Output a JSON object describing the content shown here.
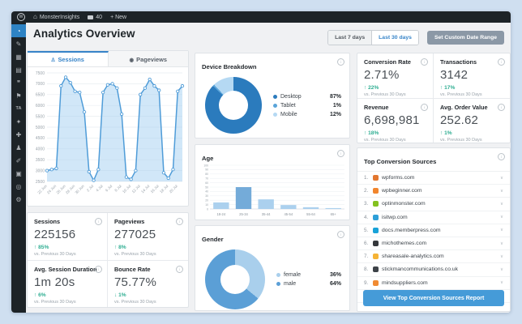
{
  "admin_bar": {
    "site": "MonsterInsights",
    "comments": "40",
    "new_label": "+ New"
  },
  "sidebar": {
    "items": [
      {
        "name": "dashboard",
        "glyph": "◔",
        "active": true
      },
      {
        "name": "posts",
        "glyph": "✎"
      },
      {
        "name": "media",
        "glyph": "▦"
      },
      {
        "name": "pages",
        "glyph": "▤"
      },
      {
        "name": "comments",
        "glyph": "❞"
      },
      {
        "name": "plugin-flag",
        "glyph": "⚑"
      },
      {
        "name": "plugin-ta",
        "glyph": "TA",
        "text": true
      },
      {
        "name": "appearance",
        "glyph": "✦"
      },
      {
        "name": "plugins",
        "glyph": "✚"
      },
      {
        "name": "users",
        "glyph": "♟"
      },
      {
        "name": "tools",
        "glyph": "✐"
      },
      {
        "name": "settings",
        "glyph": "▣"
      },
      {
        "name": "monsterinsights",
        "glyph": "◎"
      },
      {
        "name": "gear",
        "glyph": "⚙"
      }
    ]
  },
  "header": {
    "title": "Analytics Overview",
    "range_buttons": [
      {
        "label": "Last 7 days",
        "active": false
      },
      {
        "label": "Last 30 days",
        "active": true
      }
    ],
    "custom_range_label": "Set Custom Date Range"
  },
  "tabs": [
    {
      "label": "Sessions",
      "active": true
    },
    {
      "label": "Pageviews",
      "active": false
    }
  ],
  "stats_left": [
    {
      "label": "Sessions",
      "value": "225156",
      "direction": "up",
      "change": "85%",
      "compare": "vs. Previous 30 Days"
    },
    {
      "label": "Pageviews",
      "value": "277025",
      "direction": "up",
      "change": "8%",
      "compare": "vs. Previous 30 Days"
    },
    {
      "label": "Avg. Session Duration",
      "value": "1m 20s",
      "direction": "up",
      "change": "6%",
      "compare": "vs. Previous 30 Days"
    },
    {
      "label": "Bounce Rate",
      "value": "75.77%",
      "direction": "down",
      "change": "1%",
      "compare": "vs. Previous 30 Days"
    }
  ],
  "stats_right": [
    {
      "label": "Conversion Rate",
      "value": "2.71%",
      "direction": "up",
      "change": "22%",
      "compare": "vs. Previous 30 Days"
    },
    {
      "label": "Transactions",
      "value": "3142",
      "direction": "up",
      "change": "17%",
      "compare": "vs. Previous 30 Days"
    },
    {
      "label": "Revenue",
      "value": "6,698,981",
      "direction": "up",
      "change": "18%",
      "compare": "vs. Previous 30 Days"
    },
    {
      "label": "Avg. Order Value",
      "value": "252.62",
      "direction": "up",
      "change": "1%",
      "compare": "vs. Previous 30 Days"
    }
  ],
  "sources": {
    "title": "Top Conversion Sources",
    "button_label": "View Top Conversion Sources Report",
    "items": [
      {
        "rank": "1.",
        "domain": "wpforms.com",
        "favicon_color": "#e27730"
      },
      {
        "rank": "2.",
        "domain": "wpbeginner.com",
        "favicon_color": "#f1852d"
      },
      {
        "rank": "3.",
        "domain": "optinmonster.com",
        "favicon_color": "#83c11f"
      },
      {
        "rank": "4.",
        "domain": "isitwp.com",
        "favicon_color": "#2d9fd8"
      },
      {
        "rank": "5.",
        "domain": "docs.memberpress.com",
        "favicon_color": "#18a2d8"
      },
      {
        "rank": "6.",
        "domain": "michothemes.com",
        "favicon_color": "#35383c"
      },
      {
        "rank": "7.",
        "domain": "shareasale-analytics.com",
        "favicon_color": "#f5b335"
      },
      {
        "rank": "8.",
        "domain": "stickmancommunications.co.uk",
        "favicon_color": "#3d4248"
      },
      {
        "rank": "9.",
        "domain": "mindsuppliers.com",
        "favicon_color": "#f08b33"
      },
      {
        "rank": "10.",
        "domain": "workforcexl.co",
        "favicon_color": "#8d979e"
      }
    ]
  },
  "colors": {
    "accent_blue": "#3784c8",
    "line_blue": "#4f9cd8",
    "positive_green": "#2fae92",
    "desktop": "#2b7bbd",
    "tablet": "#5aa4d9",
    "mobile": "#b5d9f3",
    "female": "#a9cfec",
    "male": "#5b9fd6"
  },
  "chart_data": [
    {
      "type": "line",
      "title": "Sessions",
      "x": [
        "22 Jun",
        "23 Jun",
        "24 Jun",
        "25 Jun",
        "26 Jun",
        "27 Jun",
        "28 Jun",
        "29 Jun",
        "30 Jun",
        "1 Jul",
        "2 Jul",
        "3 Jul",
        "4 Jul",
        "5 Jul",
        "6 Jul",
        "7 Jul",
        "8 Jul",
        "9 Jul",
        "10 Jul",
        "11 Jul",
        "12 Jul",
        "13 Jul",
        "14 Jul",
        "15 Jul",
        "16 Jul",
        "17 Jul",
        "18 Jul",
        "19 Jul",
        "20 Jul",
        "21 Jul"
      ],
      "values": [
        3000,
        3050,
        3100,
        6900,
        7300,
        7050,
        6650,
        6600,
        5700,
        2950,
        2550,
        3050,
        6600,
        6950,
        7000,
        6800,
        5600,
        2700,
        2600,
        3000,
        6500,
        6800,
        7200,
        6900,
        6700,
        2900,
        2650,
        3050,
        6650,
        6900
      ],
      "ylim": [
        2500,
        7500
      ],
      "ytick_step": 500,
      "grid": true,
      "legend_position": "none",
      "xlabel": "",
      "ylabel": ""
    },
    {
      "type": "pie",
      "title": "Device Breakdown",
      "labels": [
        "Desktop",
        "Tablet",
        "Mobile"
      ],
      "values": [
        87,
        1,
        12
      ],
      "colors": [
        "#2b7bbd",
        "#5aa4d9",
        "#b5d9f3"
      ],
      "legend_position": "right"
    },
    {
      "type": "bar",
      "title": "Age",
      "categories": [
        "18-24",
        "25-34",
        "35-44",
        "45-54",
        "55-64",
        "65+"
      ],
      "values": [
        15,
        50,
        22,
        9,
        4,
        2
      ],
      "highlight_category": "25-34",
      "ylim": [
        0,
        100
      ],
      "ytick_step": 10,
      "grid": true,
      "xlabel": "",
      "ylabel": ""
    },
    {
      "type": "pie",
      "title": "Gender",
      "labels": [
        "female",
        "male"
      ],
      "values": [
        36,
        64
      ],
      "colors": [
        "#a9cfec",
        "#5b9fd6"
      ],
      "legend_position": "right"
    }
  ]
}
